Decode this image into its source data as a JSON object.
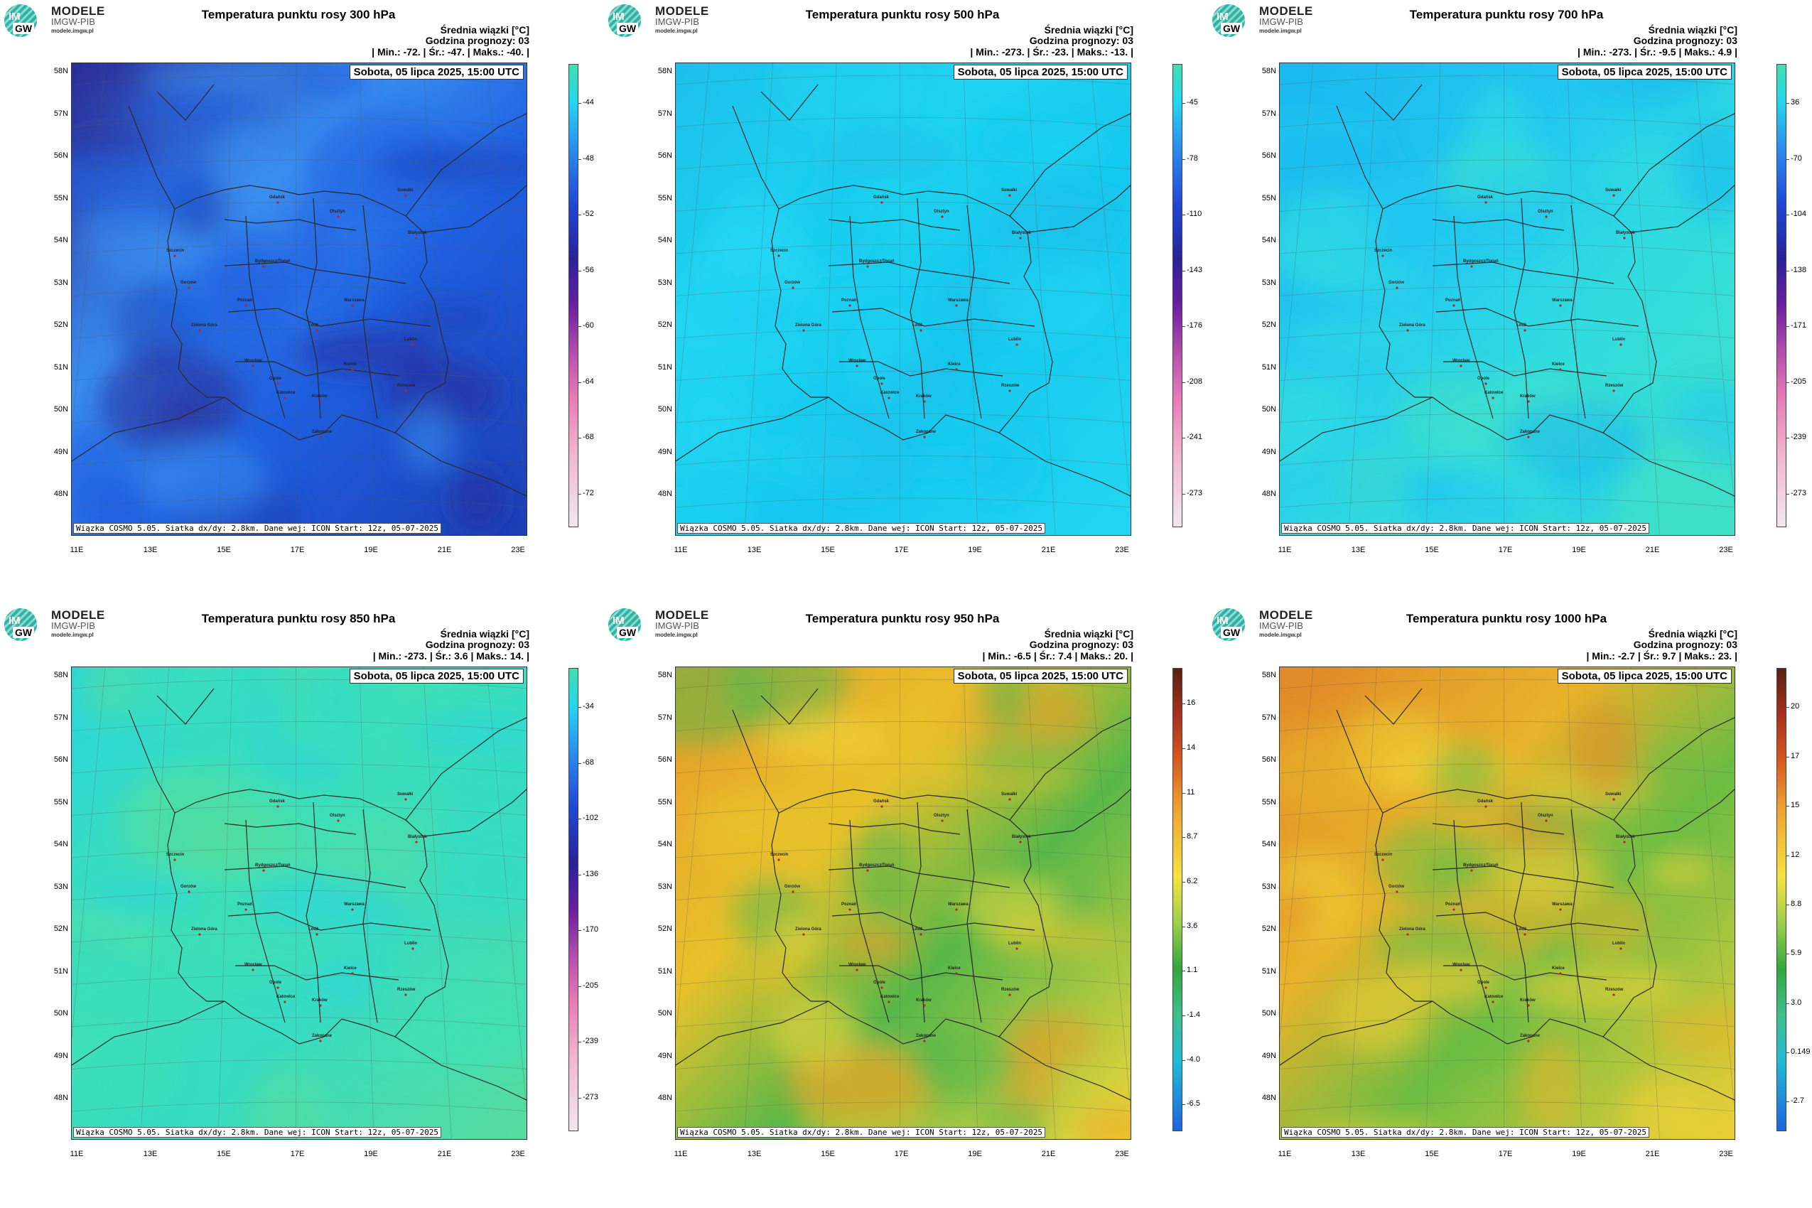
{
  "logo": {
    "title": "MODELE",
    "sub": "IMGW-PIB",
    "url": "modele.imgw.pl",
    "im": "IM",
    "gw": "GW"
  },
  "common": {
    "subtitle_line1": "Średnia wiązki [",
    "subtitle_unit": "°C]",
    "forecast_hour": "Godzina prognozy: 03",
    "timestamp": "Sobota, 05 lipca 2025, 15:00 UTC",
    "footer": "Wiązka COSMO 5.05. Siatka dx/dy: 2.8km. Dane wej: ICON Start: 12z, 05-07-2025",
    "lat_labels": [
      "58N",
      "57N",
      "56N",
      "55N",
      "54N",
      "53N",
      "52N",
      "51N",
      "50N",
      "49N",
      "48N"
    ],
    "lon_labels": [
      "11E",
      "13E",
      "15E",
      "17E",
      "19E",
      "21E",
      "23E"
    ],
    "cities": [
      "Gdańsk",
      "Olsztyn",
      "Suwałki",
      "Białystok",
      "Szczecin",
      "Bydgoszcz/Toruń",
      "Gorzów",
      "Poznań",
      "Warszawa",
      "Zielona Góra",
      "Łódź",
      "Lublin",
      "Wrocław",
      "Kielce",
      "Opole",
      "Katowice",
      "Kraków",
      "Rzeszów",
      "Zakopane"
    ]
  },
  "panels": [
    {
      "title": "Temperatura punktu rosy 300 hPa",
      "stats": "| Min.:    -72. | Śr.:    -47. | Maks.:    -40. |",
      "colorbar": [
        "-44",
        "-48",
        "-52",
        "-56",
        "-60",
        "-64",
        "-68",
        "-72"
      ],
      "palette": "cold",
      "colors": [
        "#3a8ef0",
        "#1f5fe0",
        "#1c3fb5",
        "#2a2a95"
      ]
    },
    {
      "title": "Temperatura punktu rosy 500 hPa",
      "stats": "| Min.:  -273. | Śr.:    -23. | Maks.:    -13. |",
      "colorbar": [
        "-45",
        "-78",
        "-110",
        "-143",
        "-176",
        "-208",
        "-241",
        "-273"
      ],
      "palette": "cold",
      "colors": [
        "#1ed4f0",
        "#16c8ee",
        "#22d6f2",
        "#1cc0ea"
      ]
    },
    {
      "title": "Temperatura punktu rosy 700 hPa",
      "stats": "| Min.:  -273. | Śr.:    -9.5 | Maks.:    4.9 |",
      "colorbar": [
        "36",
        "-70",
        "-104",
        "-138",
        "-171",
        "-205",
        "-239",
        "-273"
      ],
      "palette": "cold",
      "colors": [
        "#22c8f0",
        "#30dce0",
        "#3fe0c6",
        "#1ab8ee"
      ]
    },
    {
      "title": "Temperatura punktu rosy 850 hPa",
      "stats": "| Min.:  -273. | Śr.:     3.6 | Maks.:     14. |",
      "colorbar": [
        "-34",
        "-68",
        "-102",
        "-136",
        "-170",
        "-205",
        "-239",
        "-273"
      ],
      "palette": "cold",
      "colors": [
        "#3fe0b4",
        "#36dcc4",
        "#57dc9c",
        "#28d6e0"
      ]
    },
    {
      "title": "Temperatura punktu rosy 950 hPa",
      "stats": "| Min.:    -6.5 | Śr.:     7.4 | Maks.:     20. |",
      "colorbar": [
        "16",
        "14",
        "11",
        "8.7",
        "6.2",
        "3.6",
        "1.1",
        "-1.4",
        "-4.0",
        "-6.5"
      ],
      "palette": "warm",
      "colors": [
        "#e8c12a",
        "#58b84a",
        "#f2d73a",
        "#e89a2a"
      ]
    },
    {
      "title": "Temperatura punktu rosy 1000 hPa",
      "stats": "| Min.:    -2.7 | Śr.:     9.7 | Maks.:     23. |",
      "colorbar": [
        "20",
        "17",
        "15",
        "12",
        "8.8",
        "5.9",
        "3.0",
        "0.149",
        "-2.7"
      ],
      "palette": "warm",
      "colors": [
        "#e8b32a",
        "#6cbd44",
        "#f0cf36",
        "#e08a28"
      ]
    }
  ]
}
